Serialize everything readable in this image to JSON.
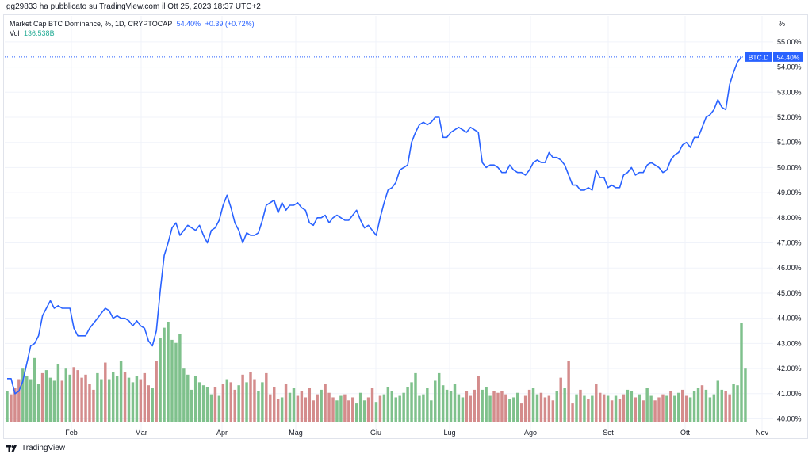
{
  "header": {
    "published_by": "gg29833 ha pubblicato su TradingView.com il Ott 25, 2023 18:37 UTC+2"
  },
  "legend": {
    "symbol": "Market Cap BTC Dominance, %, 1D, CRYPTOCAP",
    "value": "54.40%",
    "change": "+0.39 (+0.72%)",
    "vol_label": "Vol",
    "vol_value": "136.538B"
  },
  "axis": {
    "unit": "%"
  },
  "price_tag": {
    "symbol": "BTC.D",
    "value": "54.40%"
  },
  "footer": {
    "brand": "TradingView"
  },
  "colors": {
    "line": "#2962ff",
    "vol_up": "#7fc18c",
    "vol_down": "#d48c8c",
    "grid": "#f0f3fa"
  },
  "chart_data": {
    "type": "line",
    "series": [
      {
        "values": [
          41.6,
          41.6,
          41.0,
          41.1,
          41.5,
          42.2,
          42.9,
          43.0,
          43.3,
          44.1,
          44.4,
          44.7,
          44.4,
          44.5,
          44.4,
          44.4,
          44.4,
          43.6,
          43.3,
          43.3,
          43.3,
          43.6,
          43.8,
          44.0,
          44.2,
          44.4,
          44.3,
          44.0,
          44.1,
          44.0,
          44.0,
          43.9,
          43.7,
          43.9,
          43.7,
          43.6,
          43.1,
          42.9,
          43.5,
          45.1,
          46.5,
          47.0,
          47.6,
          47.8,
          47.3,
          47.5,
          47.7,
          47.6,
          47.5,
          47.7,
          47.3,
          47.0,
          47.5,
          47.6,
          47.9,
          48.5,
          48.9,
          48.4,
          47.8,
          47.5,
          47.0,
          47.4,
          47.3,
          47.3,
          47.4,
          47.9,
          48.5,
          48.6,
          48.7,
          48.2,
          48.6,
          48.3,
          48.5,
          48.5,
          48.6,
          48.4,
          48.3,
          47.8,
          47.7,
          48.0,
          48.0,
          48.1,
          47.8,
          48.0,
          48.1,
          48.0,
          47.9,
          47.9,
          48.1,
          48.3,
          47.9,
          47.6,
          47.7,
          47.5,
          47.3,
          48.0,
          48.6,
          49.1,
          49.2,
          49.4,
          49.9,
          50.0,
          50.1,
          51.0,
          51.4,
          51.7,
          51.8,
          51.7,
          51.8,
          52.0,
          52.0,
          51.2,
          51.2,
          51.4,
          51.5,
          51.6,
          51.5,
          51.4,
          51.6,
          51.5,
          51.4,
          50.2,
          50.0,
          50.1,
          50.1,
          50.0,
          49.8,
          49.8,
          50.1,
          49.9,
          49.8,
          49.8,
          49.7,
          49.9,
          50.2,
          50.3,
          50.2,
          50.2,
          50.6,
          50.4,
          50.4,
          50.3,
          50.1,
          49.7,
          49.3,
          49.3,
          49.1,
          49.1,
          49.2,
          49.1,
          49.9,
          49.6,
          49.6,
          49.2,
          49.3,
          49.2,
          49.2,
          49.7,
          49.8,
          50.0,
          49.7,
          49.8,
          49.8,
          50.1,
          50.2,
          50.1,
          50.0,
          49.8,
          49.9,
          50.3,
          50.5,
          50.6,
          50.9,
          51.0,
          50.8,
          51.2,
          51.2,
          51.6,
          52.0,
          52.1,
          52.3,
          52.7,
          52.4,
          52.3,
          53.3,
          53.8,
          54.2,
          54.4
        ]
      }
    ],
    "volume": {
      "label": "Vol",
      "values": [
        [
          20,
          0
        ],
        [
          18,
          1
        ],
        [
          22,
          1
        ],
        [
          28,
          1
        ],
        [
          35,
          0
        ],
        [
          30,
          0
        ],
        [
          28,
          0
        ],
        [
          42,
          0
        ],
        [
          25,
          0
        ],
        [
          32,
          1
        ],
        [
          34,
          0
        ],
        [
          29,
          0
        ],
        [
          27,
          0
        ],
        [
          38,
          0
        ],
        [
          27,
          1
        ],
        [
          35,
          0
        ],
        [
          31,
          0
        ],
        [
          36,
          1
        ],
        [
          34,
          1
        ],
        [
          29,
          1
        ],
        [
          31,
          1
        ],
        [
          25,
          1
        ],
        [
          21,
          1
        ],
        [
          32,
          0
        ],
        [
          28,
          0
        ],
        [
          39,
          1
        ],
        [
          28,
          0
        ],
        [
          33,
          0
        ],
        [
          30,
          0
        ],
        [
          40,
          0
        ],
        [
          33,
          1
        ],
        [
          29,
          0
        ],
        [
          26,
          0
        ],
        [
          30,
          0
        ],
        [
          28,
          1
        ],
        [
          32,
          1
        ],
        [
          24,
          1
        ],
        [
          22,
          0
        ],
        [
          40,
          1
        ],
        [
          55,
          0
        ],
        [
          62,
          0
        ],
        [
          66,
          0
        ],
        [
          54,
          0
        ],
        [
          52,
          0
        ],
        [
          58,
          0
        ],
        [
          35,
          0
        ],
        [
          31,
          0
        ],
        [
          21,
          0
        ],
        [
          30,
          0
        ],
        [
          26,
          0
        ],
        [
          24,
          0
        ],
        [
          23,
          0
        ],
        [
          18,
          0
        ],
        [
          23,
          1
        ],
        [
          17,
          0
        ],
        [
          25,
          1
        ],
        [
          28,
          0
        ],
        [
          26,
          1
        ],
        [
          21,
          1
        ],
        [
          24,
          0
        ],
        [
          31,
          1
        ],
        [
          26,
          0
        ],
        [
          33,
          1
        ],
        [
          28,
          1
        ],
        [
          20,
          0
        ],
        [
          26,
          0
        ],
        [
          32,
          1
        ],
        [
          18,
          1
        ],
        [
          23,
          1
        ],
        [
          15,
          1
        ],
        [
          16,
          0
        ],
        [
          25,
          1
        ],
        [
          19,
          0
        ],
        [
          22,
          0
        ],
        [
          17,
          1
        ],
        [
          20,
          1
        ],
        [
          16,
          1
        ],
        [
          22,
          1
        ],
        [
          14,
          1
        ],
        [
          18,
          1
        ],
        [
          21,
          0
        ],
        [
          25,
          1
        ],
        [
          19,
          1
        ],
        [
          16,
          1
        ],
        [
          14,
          0
        ],
        [
          17,
          0
        ],
        [
          18,
          1
        ],
        [
          14,
          1
        ],
        [
          16,
          1
        ],
        [
          12,
          0
        ],
        [
          19,
          0
        ],
        [
          14,
          0
        ],
        [
          16,
          1
        ],
        [
          22,
          1
        ],
        [
          13,
          0
        ],
        [
          17,
          1
        ],
        [
          18,
          0
        ],
        [
          23,
          0
        ],
        [
          20,
          0
        ],
        [
          16,
          0
        ],
        [
          17,
          0
        ],
        [
          19,
          0
        ],
        [
          23,
          0
        ],
        [
          26,
          0
        ],
        [
          32,
          0
        ],
        [
          17,
          0
        ],
        [
          18,
          0
        ],
        [
          22,
          0
        ],
        [
          14,
          0
        ],
        [
          27,
          0
        ],
        [
          32,
          0
        ],
        [
          24,
          0
        ],
        [
          21,
          0
        ],
        [
          20,
          0
        ],
        [
          25,
          0
        ],
        [
          18,
          0
        ],
        [
          16,
          0
        ],
        [
          20,
          1
        ],
        [
          17,
          1
        ],
        [
          21,
          1
        ],
        [
          30,
          1
        ],
        [
          21,
          0
        ],
        [
          23,
          0
        ],
        [
          17,
          0
        ],
        [
          20,
          1
        ],
        [
          19,
          1
        ],
        [
          20,
          1
        ],
        [
          18,
          1
        ],
        [
          15,
          0
        ],
        [
          16,
          0
        ],
        [
          19,
          0
        ],
        [
          12,
          1
        ],
        [
          17,
          1
        ],
        [
          21,
          1
        ],
        [
          22,
          0
        ],
        [
          18,
          0
        ],
        [
          19,
          1
        ],
        [
          16,
          1
        ],
        [
          17,
          1
        ],
        [
          14,
          1
        ],
        [
          20,
          0
        ],
        [
          29,
          1
        ],
        [
          22,
          0
        ],
        [
          40,
          1
        ],
        [
          12,
          1
        ],
        [
          18,
          0
        ],
        [
          21,
          1
        ],
        [
          17,
          0
        ],
        [
          15,
          1
        ],
        [
          17,
          0
        ],
        [
          25,
          1
        ],
        [
          19,
          1
        ],
        [
          18,
          1
        ],
        [
          17,
          0
        ],
        [
          14,
          1
        ],
        [
          17,
          0
        ],
        [
          15,
          1
        ],
        [
          18,
          1
        ],
        [
          21,
          0
        ],
        [
          20,
          0
        ],
        [
          16,
          1
        ],
        [
          18,
          0
        ],
        [
          14,
          1
        ],
        [
          22,
          0
        ],
        [
          17,
          0
        ],
        [
          14,
          1
        ],
        [
          16,
          1
        ],
        [
          18,
          1
        ],
        [
          17,
          0
        ],
        [
          20,
          1
        ],
        [
          17,
          0
        ],
        [
          19,
          0
        ],
        [
          21,
          1
        ],
        [
          17,
          1
        ],
        [
          16,
          0
        ],
        [
          20,
          0
        ],
        [
          22,
          0
        ],
        [
          24,
          1
        ],
        [
          21,
          0
        ],
        [
          16,
          0
        ],
        [
          18,
          0
        ],
        [
          27,
          0
        ],
        [
          21,
          0
        ],
        [
          20,
          1
        ],
        [
          18,
          1
        ],
        [
          25,
          0
        ],
        [
          24,
          0
        ],
        [
          65,
          0
        ],
        [
          35,
          0
        ]
      ]
    },
    "x_labels": [
      "Feb",
      "Mar",
      "Apr",
      "Mag",
      "Giu",
      "Lug",
      "Ago",
      "Set",
      "Ott",
      "Nov"
    ],
    "y_ticks": [
      "40.00%",
      "41.00%",
      "42.00%",
      "43.00%",
      "44.00%",
      "45.00%",
      "46.00%",
      "47.00%",
      "48.00%",
      "49.00%",
      "50.00%",
      "51.00%",
      "52.00%",
      "53.00%",
      "54.00%",
      "55.00%"
    ],
    "ylim": [
      39.7,
      55.5
    ],
    "grid": true
  }
}
